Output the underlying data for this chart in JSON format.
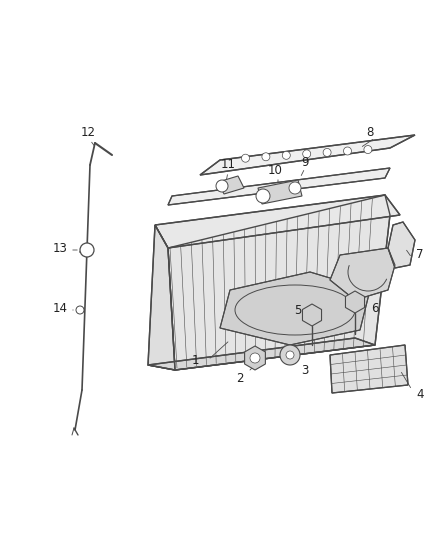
{
  "bg_color": "#ffffff",
  "line_color": "#4a4a4a",
  "label_color": "#222222",
  "fig_width": 4.38,
  "fig_height": 5.33,
  "dpi": 100
}
